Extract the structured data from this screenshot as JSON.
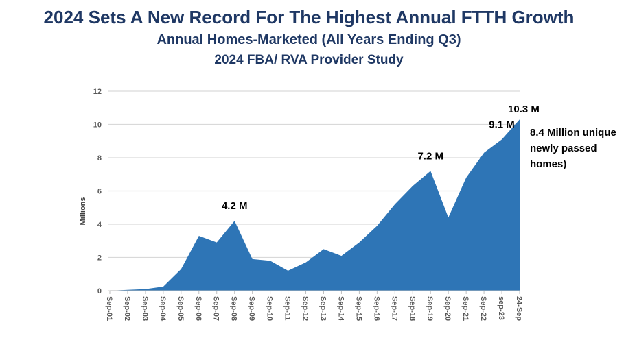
{
  "title": "2024 Sets A New Record For The Highest Annual FTTH Growth",
  "subtitle": "Annual Homes-Marketed (All Years Ending Q3)",
  "subtitle2": "2024 FBA/ RVA Provider Study",
  "note": "8.4 Million unique newly passed homes)",
  "colors": {
    "area": "#2e75b6",
    "title": "#1f3864"
  },
  "chart_data": {
    "type": "area",
    "ylabel": "Millions",
    "ylim": [
      0,
      12
    ],
    "yticks": [
      0,
      2,
      4,
      6,
      8,
      10,
      12
    ],
    "grid": true,
    "categories": [
      "Sep-01",
      "Sep-02",
      "Sep-03",
      "Sep-04",
      "Sep-05",
      "Sep-06",
      "Sep-07",
      "Sep-08",
      "Sep-09",
      "Sep-10",
      "Sep-11",
      "Sep-12",
      "Sep-13",
      "Sep-14",
      "Sep-15",
      "Sep-16",
      "Sep-17",
      "Sep-18",
      "Sep-19",
      "Sep-20",
      "Sep-21",
      "Sep-22",
      "sep-23",
      "24-Sep"
    ],
    "values": [
      0,
      0.05,
      0.1,
      0.25,
      1.3,
      3.3,
      2.9,
      4.2,
      1.9,
      1.8,
      1.2,
      1.7,
      2.5,
      2.1,
      2.9,
      3.9,
      5.2,
      6.3,
      7.2,
      4.4,
      6.8,
      8.3,
      9.1,
      10.3
    ],
    "annotations": [
      {
        "index": 7,
        "text": "4.2 M"
      },
      {
        "index": 18,
        "text": "7.2 M"
      },
      {
        "index": 22,
        "text": "9.1 M"
      },
      {
        "index": 23,
        "text": "10.3 M"
      }
    ]
  }
}
